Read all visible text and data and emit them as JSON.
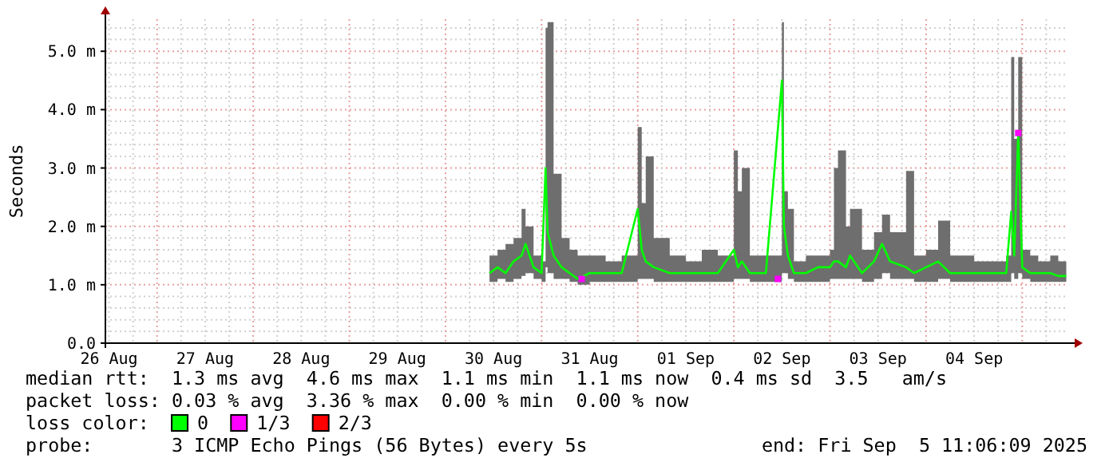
{
  "chart_data": {
    "type": "line",
    "ylabel": "Seconds",
    "legend_title": "loss color:",
    "legend": "bottom",
    "grid": true,
    "xlim": [
      "2025-08-26T11:06",
      "2025-09-05T11:06"
    ],
    "xticks": [
      {
        "value": "2025-08-26T12:00",
        "label": "26 Aug"
      },
      {
        "value": "2025-08-26T18:00",
        "label": null
      },
      {
        "value": "2025-08-27T00:00",
        "label": null
      },
      {
        "value": "2025-08-27T06:00",
        "label": null
      },
      {
        "value": "2025-08-27T12:00",
        "label": "27 Aug"
      },
      {
        "value": "2025-08-27T18:00",
        "label": null
      },
      {
        "value": "2025-08-28T00:00",
        "label": null
      },
      {
        "value": "2025-08-28T06:00",
        "label": null
      },
      {
        "value": "2025-08-28T12:00",
        "label": "28 Aug"
      },
      {
        "value": "2025-08-28T18:00",
        "label": null
      },
      {
        "value": "2025-08-29T00:00",
        "label": null
      },
      {
        "value": "2025-08-29T06:00",
        "label": null
      },
      {
        "value": "2025-08-29T12:00",
        "label": "29 Aug"
      },
      {
        "value": "2025-08-29T18:00",
        "label": null
      },
      {
        "value": "2025-08-30T00:00",
        "label": null
      },
      {
        "value": "2025-08-30T06:00",
        "label": null
      },
      {
        "value": "2025-08-30T12:00",
        "label": "30 Aug"
      },
      {
        "value": "2025-08-30T18:00",
        "label": null
      },
      {
        "value": "2025-08-31T00:00",
        "label": null
      },
      {
        "value": "2025-08-31T06:00",
        "label": null
      },
      {
        "value": "2025-08-31T12:00",
        "label": "31 Aug"
      },
      {
        "value": "2025-08-31T18:00",
        "label": null
      },
      {
        "value": "2025-09-01T00:00",
        "label": null
      },
      {
        "value": "2025-09-01T06:00",
        "label": null
      },
      {
        "value": "2025-09-01T12:00",
        "label": "01 Sep"
      },
      {
        "value": "2025-09-01T18:00",
        "label": null
      },
      {
        "value": "2025-09-02T00:00",
        "label": null
      },
      {
        "value": "2025-09-02T06:00",
        "label": null
      },
      {
        "value": "2025-09-02T12:00",
        "label": "02 Sep"
      },
      {
        "value": "2025-09-02T18:00",
        "label": null
      },
      {
        "value": "2025-09-03T00:00",
        "label": null
      },
      {
        "value": "2025-09-03T06:00",
        "label": null
      },
      {
        "value": "2025-09-03T12:00",
        "label": "03 Sep"
      },
      {
        "value": "2025-09-03T18:00",
        "label": null
      },
      {
        "value": "2025-09-04T00:00",
        "label": null
      },
      {
        "value": "2025-09-04T06:00",
        "label": null
      },
      {
        "value": "2025-09-04T12:00",
        "label": "04 Sep"
      },
      {
        "value": "2025-09-04T18:00",
        "label": null
      },
      {
        "value": "2025-09-05T00:00",
        "label": null
      },
      {
        "value": "2025-09-05T06:00",
        "label": null
      }
    ],
    "ylim": [
      0,
      5.55
    ],
    "yticks": [
      {
        "value": 0,
        "label": "0.0"
      },
      {
        "value": 0.2,
        "label": null
      },
      {
        "value": 0.4,
        "label": null
      },
      {
        "value": 0.6,
        "label": null
      },
      {
        "value": 0.8,
        "label": null
      },
      {
        "value": 1,
        "label": "1.0 m"
      },
      {
        "value": 1.2,
        "label": null
      },
      {
        "value": 1.4,
        "label": null
      },
      {
        "value": 1.6,
        "label": null
      },
      {
        "value": 1.8,
        "label": null
      },
      {
        "value": 2,
        "label": "2.0 m"
      },
      {
        "value": 2.2,
        "label": null
      },
      {
        "value": 2.4,
        "label": null
      },
      {
        "value": 2.6,
        "label": null
      },
      {
        "value": 2.8,
        "label": null
      },
      {
        "value": 3,
        "label": "3.0 m"
      },
      {
        "value": 3.2,
        "label": null
      },
      {
        "value": 3.4,
        "label": null
      },
      {
        "value": 3.6,
        "label": null
      },
      {
        "value": 3.8,
        "label": null
      },
      {
        "value": 4,
        "label": "4.0 m"
      },
      {
        "value": 4.2,
        "label": null
      },
      {
        "value": 4.4,
        "label": null
      },
      {
        "value": 4.6,
        "label": null
      },
      {
        "value": 4.8,
        "label": null
      },
      {
        "value": 5,
        "label": "5.0 m"
      },
      {
        "value": 5.2,
        "label": null
      },
      {
        "value": 5.4,
        "label": null
      }
    ],
    "series": [
      {
        "name": "0",
        "color": "#00ff00",
        "x": [
          "2025-08-30T11:00",
          "2025-08-30T13:00",
          "2025-08-30T15:00",
          "2025-08-30T17:00",
          "2025-08-30T19:00",
          "2025-08-30T20:00",
          "2025-08-30T22:00",
          "2025-08-31T00:00",
          "2025-08-31T01:00",
          "2025-08-31T01:30",
          "2025-08-31T03:00",
          "2025-08-31T05:00",
          "2025-08-31T07:00",
          "2025-08-31T09:00",
          "2025-08-31T12:00",
          "2025-08-31T16:00",
          "2025-08-31T20:00",
          "2025-09-01T00:00",
          "2025-09-01T01:00",
          "2025-09-01T02:00",
          "2025-09-01T04:00",
          "2025-09-01T08:00",
          "2025-09-01T12:00",
          "2025-09-01T16:00",
          "2025-09-01T20:00",
          "2025-09-02T00:00",
          "2025-09-02T01:00",
          "2025-09-02T02:00",
          "2025-09-02T04:00",
          "2025-09-02T08:00",
          "2025-09-02T12:00",
          "2025-09-02T12:30",
          "2025-09-02T13:30",
          "2025-09-02T15:00",
          "2025-09-02T18:00",
          "2025-09-02T21:00",
          "2025-09-03T00:00",
          "2025-09-03T01:00",
          "2025-09-03T02:00",
          "2025-09-03T04:00",
          "2025-09-03T05:00",
          "2025-09-03T08:00",
          "2025-09-03T11:00",
          "2025-09-03T13:00",
          "2025-09-03T15:00",
          "2025-09-03T19:00",
          "2025-09-03T21:00",
          "2025-09-04T00:00",
          "2025-09-04T03:00",
          "2025-09-04T06:00",
          "2025-09-04T12:00",
          "2025-09-04T16:00",
          "2025-09-04T20:00",
          "2025-09-04T21:15",
          "2025-09-04T22:00",
          "2025-09-04T23:00",
          "2025-09-05T00:00",
          "2025-09-05T02:00",
          "2025-09-05T04:00",
          "2025-09-05T07:00",
          "2025-09-05T09:00",
          "2025-09-05T11:00"
        ],
        "values": [
          1.2,
          1.3,
          1.2,
          1.4,
          1.5,
          1.7,
          1.3,
          1.2,
          3.0,
          1.9,
          1.5,
          1.3,
          1.2,
          1.1,
          1.2,
          1.2,
          1.2,
          2.3,
          1.6,
          1.4,
          1.3,
          1.2,
          1.2,
          1.2,
          1.2,
          1.6,
          1.3,
          1.4,
          1.2,
          1.2,
          4.5,
          2.0,
          1.5,
          1.2,
          1.2,
          1.3,
          1.3,
          1.4,
          1.4,
          1.3,
          1.5,
          1.2,
          1.4,
          1.7,
          1.4,
          1.3,
          1.2,
          1.3,
          1.4,
          1.2,
          1.2,
          1.2,
          1.2,
          2.25,
          1.5,
          3.6,
          1.3,
          1.2,
          1.2,
          1.2,
          1.15,
          1.15
        ],
        "lower": [
          1.05,
          1.1,
          1.05,
          1.1,
          1.15,
          1.2,
          1.1,
          1.05,
          1.3,
          1.2,
          1.1,
          1.1,
          1.05,
          1.0,
          1.05,
          1.05,
          1.05,
          1.1,
          1.1,
          1.1,
          1.05,
          1.05,
          1.05,
          1.05,
          1.05,
          1.1,
          1.1,
          1.1,
          1.05,
          1.05,
          1.2,
          1.2,
          1.1,
          1.05,
          1.05,
          1.05,
          1.1,
          1.1,
          1.1,
          1.1,
          1.1,
          1.05,
          1.1,
          1.2,
          1.1,
          1.1,
          1.05,
          1.05,
          1.1,
          1.05,
          1.05,
          1.05,
          1.05,
          1.2,
          1.1,
          1.2,
          1.1,
          1.05,
          1.05,
          1.05,
          1.05,
          1.05
        ],
        "upper": [
          1.5,
          1.6,
          1.7,
          1.8,
          2.3,
          2.0,
          1.5,
          1.4,
          5.4,
          5.5,
          2.9,
          1.8,
          1.6,
          1.5,
          1.5,
          1.4,
          1.5,
          3.7,
          2.4,
          3.2,
          1.8,
          1.5,
          1.4,
          1.6,
          1.5,
          3.3,
          2.6,
          3.0,
          1.5,
          1.5,
          5.5,
          2.6,
          2.3,
          1.4,
          1.5,
          1.5,
          1.6,
          3.0,
          3.3,
          2.0,
          2.3,
          1.6,
          1.9,
          2.2,
          1.9,
          2.95,
          1.5,
          1.6,
          2.1,
          1.5,
          1.4,
          1.4,
          1.5,
          4.9,
          3.5,
          4.9,
          1.6,
          1.5,
          1.4,
          1.5,
          1.4,
          1.35
        ]
      },
      {
        "name": "1/3",
        "color": "#ff00ff",
        "type": "scatter",
        "marker": "square",
        "x": [
          "2025-08-31T10:00",
          "2025-09-02T11:00",
          "2025-09-04T23:00"
        ],
        "values": [
          1.1,
          1.1,
          3.6
        ]
      },
      {
        "name": "2/3",
        "color": "#ff0000",
        "type": "scatter",
        "marker": "square"
      }
    ],
    "annotations": [
      "median rtt:  1.3 ms avg  4.6 ms max  1.1 ms min  1.1 ms now  0.4 ms sd  3.5   am/s",
      "packet loss: 0.03 % avg  3.36 % max  0.00 % min  0.00 % now",
      "probe:       3 ICMP Echo Pings (56 Bytes) every 5s",
      "end: Fri Sep  5 11:06:09 2025"
    ]
  }
}
